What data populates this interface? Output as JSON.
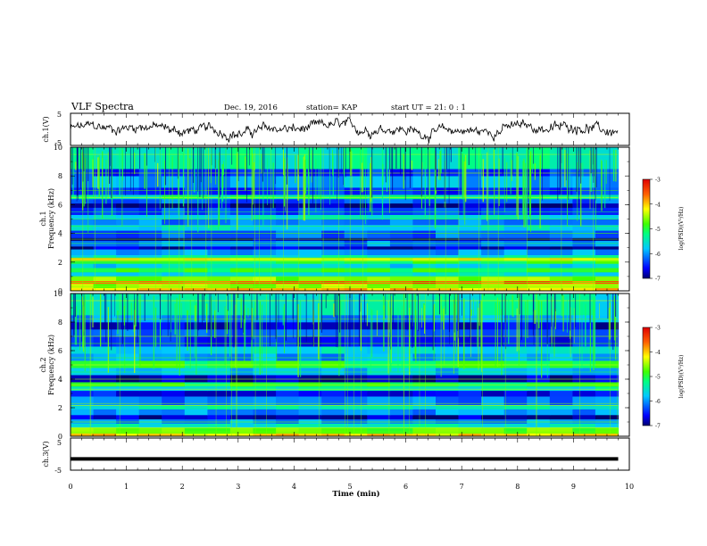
{
  "header": {
    "title": "VLF Spectra",
    "date": "Dec. 19, 2016",
    "station": "station= KAP",
    "start": "start  UT =   21: 0   : 1"
  },
  "chart_data": [
    {
      "type": "line",
      "name": "ch1-waveform",
      "ylabel": "ch.1(V)",
      "ylim": [
        -5,
        5
      ],
      "yticks": [
        "5",
        "-5"
      ],
      "xlim": [
        0,
        10
      ],
      "x_end": 9.8,
      "trace": {
        "mean": 0.0,
        "amplitude": 4.5,
        "noisy": true
      }
    },
    {
      "type": "heatmap",
      "name": "ch1-spectrogram",
      "ylabel_line1": "ch.1",
      "ylabel_line2": "Frequency (kHz)",
      "ylim": [
        0,
        10
      ],
      "yticks": [
        "0",
        "2",
        "4",
        "6",
        "8",
        "10"
      ],
      "xlim": [
        0,
        10
      ],
      "x_end": 9.8,
      "colorbar": {
        "label": "log(PSD)(V²/Hz)",
        "range": [
          -7,
          -3
        ],
        "ticks": [
          "-3",
          "-4",
          "-5",
          "-6",
          "-7"
        ],
        "colormap": "jet"
      },
      "bands_khz_level": [
        [
          0.0,
          0.2,
          -4.0
        ],
        [
          0.2,
          0.5,
          -4.5
        ],
        [
          0.5,
          0.7,
          -3.6
        ],
        [
          0.7,
          1.0,
          -4.6
        ],
        [
          1.0,
          1.3,
          -5.6
        ],
        [
          1.3,
          1.6,
          -5.0
        ],
        [
          1.6,
          1.9,
          -5.7
        ],
        [
          1.9,
          2.1,
          -5.0
        ],
        [
          2.1,
          2.3,
          -4.2
        ],
        [
          2.3,
          2.5,
          -5.5
        ],
        [
          2.5,
          2.9,
          -6.0
        ],
        [
          2.9,
          3.1,
          -6.8
        ],
        [
          3.1,
          3.5,
          -6.1
        ],
        [
          3.5,
          3.7,
          -6.9
        ],
        [
          3.7,
          4.2,
          -6.2
        ],
        [
          4.2,
          4.6,
          -5.6
        ],
        [
          4.6,
          5.0,
          -6.1
        ],
        [
          5.0,
          5.3,
          -5.6
        ],
        [
          5.3,
          5.8,
          -6.3
        ],
        [
          5.8,
          6.1,
          -6.9
        ],
        [
          6.1,
          6.4,
          -6.2
        ],
        [
          6.4,
          6.7,
          -5.3
        ],
        [
          6.7,
          7.2,
          -6.4
        ],
        [
          7.2,
          8.0,
          -5.9
        ],
        [
          8.0,
          8.5,
          -6.4
        ],
        [
          8.5,
          10.0,
          -5.4
        ]
      ]
    },
    {
      "type": "heatmap",
      "name": "ch2-spectrogram",
      "ylabel_line1": "ch.2",
      "ylabel_line2": "Frequency (kHz)",
      "ylim": [
        0,
        10
      ],
      "yticks": [
        "0",
        "2",
        "4",
        "6",
        "8",
        "10"
      ],
      "xlim": [
        0,
        10
      ],
      "x_end": 9.8,
      "colorbar": {
        "label": "log(PSD)(V²/Hz)",
        "range": [
          -7,
          -3
        ],
        "ticks": [
          "-3",
          "-4",
          "-5",
          "-6",
          "-7"
        ],
        "colormap": "jet"
      },
      "bands_khz_level": [
        [
          0.0,
          0.2,
          -4.1
        ],
        [
          0.2,
          0.6,
          -4.7
        ],
        [
          0.6,
          0.9,
          -5.5
        ],
        [
          0.9,
          1.2,
          -6.0
        ],
        [
          1.2,
          1.5,
          -6.8
        ],
        [
          1.5,
          1.9,
          -6.0
        ],
        [
          1.9,
          2.2,
          -5.4
        ],
        [
          2.2,
          2.8,
          -6.1
        ],
        [
          2.8,
          3.2,
          -6.6
        ],
        [
          3.2,
          3.5,
          -5.5
        ],
        [
          3.5,
          3.8,
          -5.0
        ],
        [
          3.8,
          4.3,
          -6.8
        ],
        [
          4.3,
          4.8,
          -5.8
        ],
        [
          4.8,
          5.3,
          -5.0
        ],
        [
          5.3,
          5.8,
          -6.0
        ],
        [
          5.8,
          6.3,
          -5.6
        ],
        [
          6.3,
          7.0,
          -6.5
        ],
        [
          7.0,
          7.5,
          -6.2
        ],
        [
          7.5,
          8.0,
          -6.7
        ],
        [
          8.0,
          8.5,
          -6.0
        ],
        [
          8.5,
          10.0,
          -5.5
        ]
      ]
    },
    {
      "type": "line",
      "name": "ch3-waveform",
      "ylabel": "ch.3(V)",
      "ylim": [
        -5,
        5
      ],
      "yticks": [
        "5",
        "-5"
      ],
      "xlim": [
        0,
        10
      ],
      "x_end": 9.8,
      "trace": {
        "mean": -1.5,
        "amplitude": 0.4,
        "noisy": false
      }
    }
  ],
  "xaxis": {
    "label": "Time (min)",
    "ticks": [
      "0",
      "1",
      "2",
      "3",
      "4",
      "5",
      "6",
      "7",
      "8",
      "9",
      "10"
    ]
  }
}
